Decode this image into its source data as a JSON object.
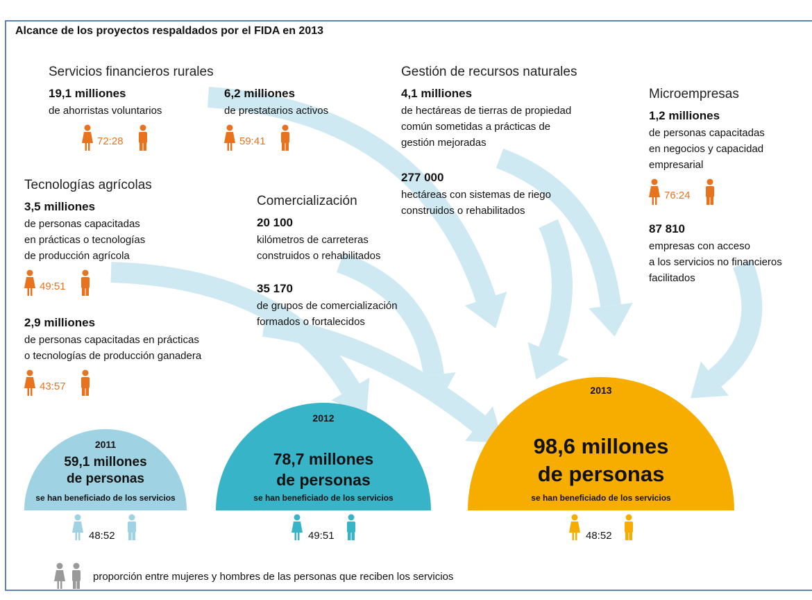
{
  "title": "Alcance de los proyectos respaldados por el FIDA en 2013",
  "sections": [
    {
      "heading": "Servicios financieros rurales",
      "items": [
        {
          "value": "19,1 milliones",
          "lines": [
            "de ahorristas voluntarios"
          ],
          "ratio": "72:28"
        },
        {
          "value": "6,2 milliones",
          "lines": [
            "de prestatarios activos"
          ],
          "ratio": "59:41"
        }
      ]
    },
    {
      "heading": "Gestión de recursos naturales",
      "items": [
        {
          "value": "4,1 milliones",
          "lines": [
            "de hectáreas de tierras de propiedad",
            "común sometidas a prácticas de",
            "gestión mejoradas"
          ]
        },
        {
          "value": "277 000",
          "lines": [
            "hectáreas con sistemas de riego",
            "construidos o rehabilitados"
          ]
        }
      ]
    },
    {
      "heading": "Microempresas",
      "items": [
        {
          "value": "1,2 milliones",
          "lines": [
            "de personas capacitadas",
            "en negocios y capacidad",
            "empresarial"
          ],
          "ratio": "76:24"
        },
        {
          "value": "87 810",
          "lines": [
            "empresas con acceso",
            "a los servicios no financieros",
            "facilitados"
          ]
        }
      ]
    },
    {
      "heading": "Tecnologías agrícolas",
      "items": [
        {
          "value": "3,5 milliones",
          "lines": [
            "de personas capacitadas",
            "en prácticas o tecnologías",
            "de producción agrícola"
          ],
          "ratio": "49:51"
        },
        {
          "value": "2,9 milliones",
          "lines": [
            "de personas capacitadas en prácticas",
            "o tecnologías de producción ganadera"
          ],
          "ratio": "43:57"
        }
      ]
    },
    {
      "heading": "Comercialización",
      "items": [
        {
          "value": "20 100",
          "lines": [
            "kilómetros de carreteras",
            "construidos o rehabilitados"
          ]
        },
        {
          "value": "35 170",
          "lines": [
            "de grupos de comercialización",
            "formados o fortalecidos"
          ]
        }
      ]
    }
  ],
  "years": [
    {
      "year": "2011",
      "value": "59,1 millones",
      "unit": "de personas",
      "note": "se han beneficiado de los servicios",
      "ratio": "48:52"
    },
    {
      "year": "2012",
      "value": "78,7 millones",
      "unit": "de personas",
      "note": "se han beneficiado de los servicios",
      "ratio": "49:51"
    },
    {
      "year": "2013",
      "value": "98,6 millones",
      "unit": "de personas",
      "note": "se han beneficiado de los servicios",
      "ratio": "48:52"
    }
  ],
  "legend": "proporción entre mujeres y hombres de las personas que reciben los servicios"
}
